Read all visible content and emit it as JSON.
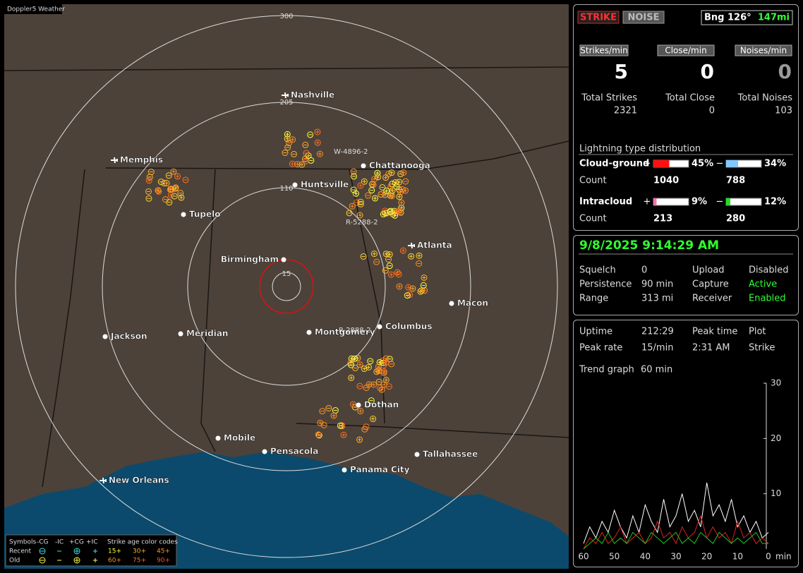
{
  "app_title": "Doppler5 Weather",
  "map": {
    "range_labels": [
      "15",
      "110",
      "205",
      "300"
    ],
    "cities": [
      "Nashville",
      "Memphis",
      "Chattanooga",
      "Huntsville",
      "Tupelo",
      "Atlanta",
      "Birmingham",
      "Macon",
      "Columbus",
      "Jackson",
      "Meridian",
      "Montgomery",
      "Dothan",
      "Mobile",
      "Pensacola",
      "Tallahassee",
      "Panama City",
      "New Orleans"
    ],
    "storm_labels": [
      "W-4896-2",
      "R-5288-2",
      "R-2888-2"
    ]
  },
  "legend": {
    "symbols": "Symbols",
    "columns": [
      "-CG",
      "-IC",
      "+CG",
      "+IC"
    ],
    "age_title": "Strike age color codes",
    "rows": [
      "Recent",
      "Old"
    ],
    "recent_ages": [
      "15+",
      "30+",
      "45+"
    ],
    "old_ages": [
      "60+",
      "75+",
      "90+"
    ]
  },
  "status": {
    "modes": [
      "STRIKE",
      "NOISE"
    ],
    "bearing": "Bng 126°",
    "distance": "147mi",
    "rates": [
      {
        "label": "Strikes/min",
        "value": 5
      },
      {
        "label": "Close/min",
        "value": 0
      },
      {
        "label": "Noises/min",
        "value": 0
      }
    ],
    "totals": [
      {
        "label": "Total Strikes",
        "value": 2321
      },
      {
        "label": "Total Close",
        "value": 0
      },
      {
        "label": "Total Noises",
        "value": 103
      }
    ],
    "distribution_title": "Lightning type distribution",
    "count_label": "Count",
    "types": [
      {
        "name": "Cloud-ground",
        "positive": {
          "sign": "+",
          "pct": {
            "value": 45,
            "label": "45%"
          },
          "count": 1040
        },
        "negative": {
          "sign": "−",
          "pct": {
            "value": 34,
            "label": "34%"
          },
          "count": 788
        }
      },
      {
        "name": "Intracloud",
        "positive": {
          "sign": "+",
          "pct": {
            "value": 9,
            "label": "9%"
          },
          "count": 213
        },
        "negative": {
          "sign": "−",
          "pct": {
            "value": 12,
            "label": "12%"
          },
          "count": 280
        }
      }
    ]
  },
  "settings": {
    "datetime": "9/8/2025 9:14:29 AM",
    "rows": [
      [
        "Squelch",
        "0",
        "Upload",
        "Disabled"
      ],
      [
        "Persistence",
        "90 min",
        "Capture",
        "Active"
      ],
      [
        "Range",
        "313 mi",
        "Receiver",
        "Enabled"
      ]
    ]
  },
  "stats": {
    "rows": [
      [
        "Uptime",
        "212:29",
        "Peak time",
        "Plot"
      ],
      [
        "Peak rate",
        "15/min",
        "2:31 AM",
        "Strike"
      ]
    ],
    "trend_label": "Trend graph",
    "trend_value": "60 min"
  },
  "trend": {
    "x_unit": "min",
    "xlim": [
      60,
      0
    ],
    "xticks": [
      60,
      50,
      40,
      30,
      20,
      10,
      0
    ],
    "ylim": [
      0,
      30
    ],
    "yticks": [
      10,
      20,
      30
    ],
    "x": [
      60,
      58,
      56,
      54,
      52,
      50,
      48,
      46,
      44,
      42,
      40,
      38,
      36,
      34,
      32,
      30,
      28,
      26,
      24,
      22,
      20,
      18,
      16,
      14,
      12,
      10,
      8,
      6,
      4,
      2,
      0
    ],
    "series": [
      {
        "color": "#ffffff",
        "values": [
          1,
          4,
          2,
          5,
          3,
          7,
          4,
          2,
          6,
          3,
          8,
          5,
          3,
          9,
          4,
          6,
          10,
          5,
          7,
          4,
          12,
          6,
          8,
          5,
          9,
          4,
          6,
          3,
          5,
          2,
          3
        ]
      },
      {
        "color": "#e02020",
        "values": [
          0,
          2,
          1,
          3,
          1,
          2,
          4,
          1,
          2,
          3,
          1,
          2,
          5,
          2,
          3,
          1,
          4,
          2,
          3,
          6,
          2,
          4,
          2,
          3,
          1,
          5,
          2,
          3,
          1,
          2,
          1
        ]
      },
      {
        "color": "#20c020",
        "values": [
          0,
          1,
          2,
          1,
          3,
          1,
          2,
          1,
          3,
          2,
          1,
          3,
          2,
          1,
          2,
          3,
          1,
          2,
          1,
          3,
          2,
          1,
          3,
          2,
          1,
          2,
          1,
          2,
          3,
          1,
          1
        ]
      }
    ]
  }
}
